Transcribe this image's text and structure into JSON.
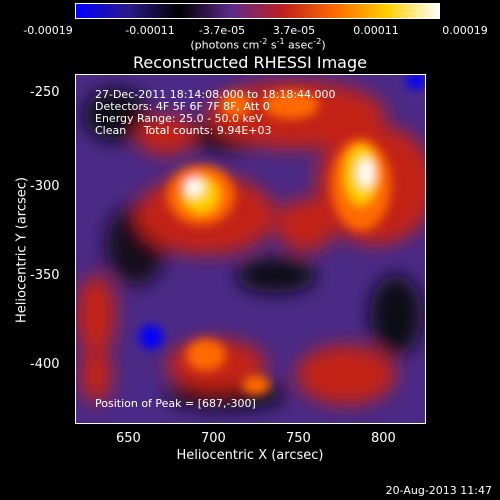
{
  "colorbar": {
    "tick_labels": [
      "-0.00019",
      "-0.00011",
      "-3.7e-05",
      "3.7e-05",
      "0.00011",
      "0.00019"
    ],
    "units": {
      "prefix": "(photons cm",
      "exp1": "-2",
      "mid1": " s",
      "exp2": "-1",
      "mid2": " asec",
      "exp3": "-2",
      "suffix": ")"
    },
    "colors": [
      "#0000ff",
      "#2b1a8a",
      "#000000",
      "#5e2a8c",
      "#c0201c",
      "#ff6a00",
      "#ffd000",
      "#ffffff"
    ]
  },
  "title": "Reconstructed RHESSI Image",
  "info": {
    "time": "27-Dec-2011 18:14:08.000 to 18:18:44.000",
    "detectors": "Detectors: 4F 5F 6F 7F 8F, Att 0",
    "energy": "Energy Range: 25.0 - 50.0 keV",
    "clean": "Clean     Total counts: 9.94E+03",
    "peak": "Position of Peak = [687,-300]"
  },
  "x_axis": {
    "label": "Heliocentric X (arcsec)",
    "ticks": [
      "650",
      "700",
      "750",
      "800"
    ]
  },
  "y_axis": {
    "label": "Heliocentric Y (arcsec)",
    "ticks": [
      "-250",
      "-300",
      "-350",
      "-400"
    ]
  },
  "footer": "20-Aug-2013 11:47"
}
